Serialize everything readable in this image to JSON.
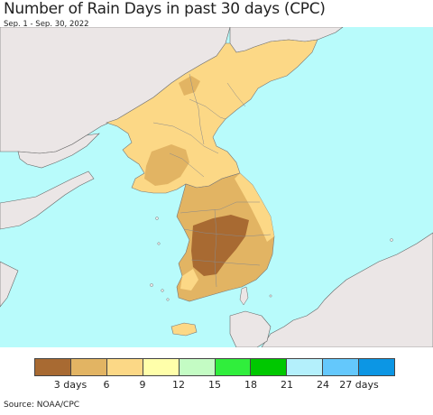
{
  "title": "Number of Rain Days in past 30 days (CPC)",
  "subtitle": "Sep. 1 - Sep. 30, 2022",
  "source": "Source: NOAA/CPC",
  "colors": {
    "ocean": "#b8fbfb",
    "land_other": "#ebe6e6",
    "lt6": "#a86a32",
    "d6_9": "#e2b463",
    "d9_12": "#fcd886",
    "border": "#777777"
  },
  "legend": {
    "colors": [
      "#a86a32",
      "#e2b463",
      "#fcd886",
      "#ffffaa",
      "#c4fcc4",
      "#30ee3c",
      "#00c800",
      "#b4f0fc",
      "#64c8fc",
      "#0c96e4"
    ],
    "ticks": [
      "3 days",
      "6",
      "9",
      "12",
      "15",
      "18",
      "21",
      "24",
      "27 days"
    ]
  }
}
